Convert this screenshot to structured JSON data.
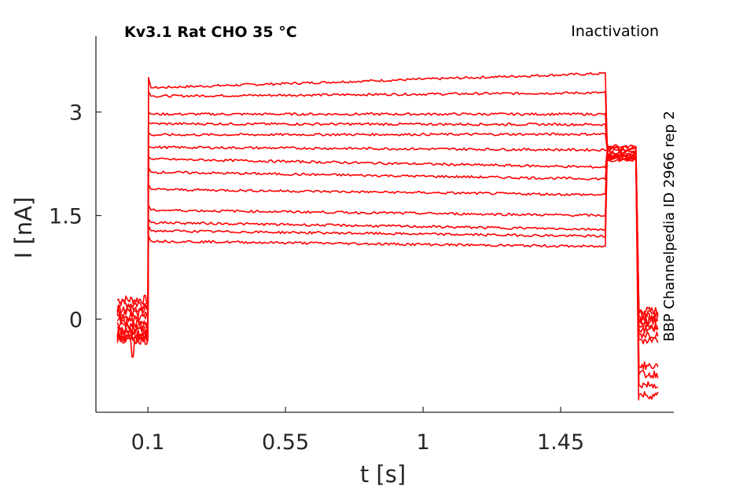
{
  "chart_data": {
    "type": "line",
    "title_left": "Kv3.1  Rat  CHO  35 °C",
    "title_right": "Inactivation",
    "side_note": "BBP Channelpedia ID 2966 rep 2",
    "xlabel": "t [s]",
    "ylabel": "I [nA]",
    "xlim": [
      -0.07,
      1.82
    ],
    "ylim": [
      -1.35,
      4.1
    ],
    "x_ticks": [
      0.1,
      0.55,
      1,
      1.45
    ],
    "x_tick_labels": [
      "0.1",
      "0.55",
      "1",
      "1.45"
    ],
    "y_ticks": [
      0,
      1.5,
      3
    ],
    "y_tick_labels": [
      "0",
      "1.5",
      "3"
    ],
    "grid": false,
    "legend": "none",
    "line_color": "#ff0000",
    "pulse_start": 0.1,
    "pulse_end": 1.6,
    "tail_end": 1.7,
    "record_start": 0.0,
    "record_end": 1.77,
    "series": [
      {
        "pre": 0.28,
        "peak": 3.5,
        "step_start": 3.35,
        "step_end": 3.56,
        "tail": 2.5,
        "post": 0.12
      },
      {
        "pre": 0.22,
        "peak": 3.3,
        "step_start": 3.23,
        "step_end": 3.28,
        "tail": 2.48,
        "post": 0.08
      },
      {
        "pre": 0.16,
        "peak": 3.0,
        "step_start": 2.97,
        "step_end": 2.97,
        "tail": 2.46,
        "post": 0.04
      },
      {
        "pre": 0.1,
        "peak": 2.85,
        "step_start": 2.83,
        "step_end": 2.82,
        "tail": 2.44,
        "post": 0.0
      },
      {
        "pre": 0.04,
        "peak": 2.7,
        "step_start": 2.67,
        "step_end": 2.68,
        "tail": 2.42,
        "post": -0.05
      },
      {
        "pre": -0.02,
        "peak": 2.5,
        "step_start": 2.49,
        "step_end": 2.45,
        "tail": 2.4,
        "post": -0.1
      },
      {
        "pre": -0.08,
        "peak": 2.35,
        "step_start": 2.32,
        "step_end": 2.2,
        "tail": 2.38,
        "post": -0.15
      },
      {
        "pre": -0.14,
        "peak": 2.2,
        "step_start": 2.13,
        "step_end": 2.03,
        "tail": 2.36,
        "post": -0.22
      },
      {
        "pre": -0.18,
        "peak": 1.95,
        "step_start": 1.88,
        "step_end": 1.8,
        "tail": 2.35,
        "post": -0.3
      },
      {
        "pre": -0.22,
        "peak": 1.65,
        "step_start": 1.58,
        "step_end": 1.5,
        "tail": 2.34,
        "post": -0.68
      },
      {
        "pre": -0.26,
        "peak": 1.45,
        "step_start": 1.4,
        "step_end": 1.3,
        "tail": 2.33,
        "post": -0.8
      },
      {
        "pre": -0.28,
        "peak": 1.35,
        "step_start": 1.28,
        "step_end": 1.2,
        "tail": 2.32,
        "post": -0.95
      },
      {
        "pre": -0.3,
        "peak": 1.2,
        "step_start": 1.13,
        "step_end": 1.05,
        "tail": 2.31,
        "post": -1.1
      }
    ],
    "pre_dip": {
      "x": 0.05,
      "y": -0.55
    },
    "post_dip": {
      "x": 1.705,
      "y": -1.17
    }
  }
}
